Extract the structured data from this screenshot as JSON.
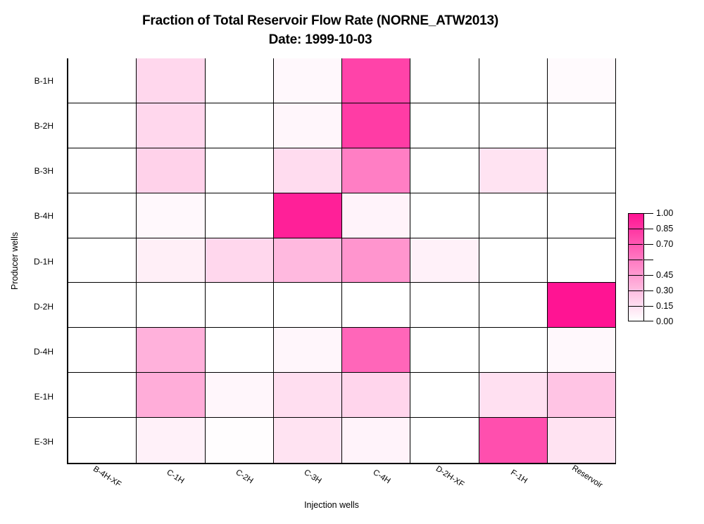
{
  "window": {
    "background": "#FFFFFF"
  },
  "chart_data": {
    "type": "heatmap",
    "title": "Fraction of Total Reservoir Flow Rate (NORNE_ATW2013)",
    "subtitle": "Date: 1999-10-03",
    "xlabel": "Injection wells",
    "ylabel": "Producer wells",
    "x_categories": [
      "B-4H-XF",
      "C-1H",
      "C-2H",
      "C-3H",
      "C-4H",
      "D-2H-XF",
      "F-1H",
      "Reservoir"
    ],
    "y_categories": [
      "B-1H",
      "B-2H",
      "B-3H",
      "B-4H",
      "D-1H",
      "D-2H",
      "D-4H",
      "E-1H",
      "E-3H"
    ],
    "values": [
      [
        0,
        0.17,
        0,
        0.03,
        0.8,
        0,
        0,
        0.02
      ],
      [
        0,
        0.17,
        0,
        0.04,
        0.83,
        0,
        0,
        0
      ],
      [
        0,
        0.19,
        0,
        0.15,
        0.55,
        0,
        0.12,
        0
      ],
      [
        0,
        0.03,
        0,
        0.95,
        0.05,
        0,
        0,
        0
      ],
      [
        0,
        0.07,
        0.17,
        0.3,
        0.45,
        0.06,
        0,
        0
      ],
      [
        0,
        0,
        0,
        0,
        0,
        0,
        0,
        1.0
      ],
      [
        0,
        0.33,
        0,
        0.04,
        0.65,
        0,
        0,
        0.03
      ],
      [
        0,
        0.35,
        0.04,
        0.14,
        0.18,
        0,
        0.13,
        0.25
      ],
      [
        0,
        0.06,
        0.01,
        0.12,
        0.05,
        0,
        0.75,
        0.12
      ]
    ],
    "value_range": [
      0,
      1
    ],
    "color_low": "#FFFFFF",
    "color_high": "#FF1493",
    "grid_color": "#000000",
    "grid": true,
    "legend_position": "right",
    "colorbar": {
      "segments": 7,
      "tick_labels": [
        "1.00",
        "0.85",
        "0.70",
        "",
        "0.45",
        "0.30",
        "0.15",
        "0.00"
      ]
    }
  }
}
